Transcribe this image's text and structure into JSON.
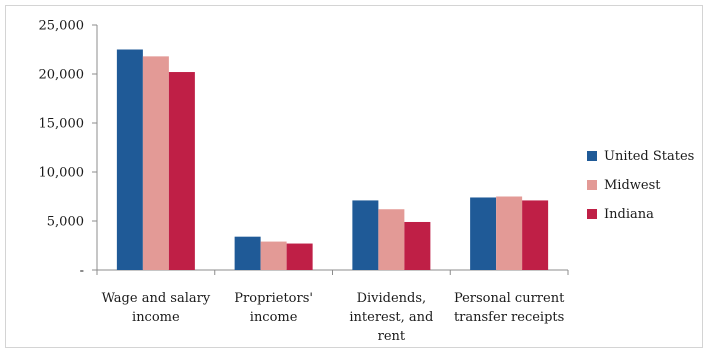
{
  "chart_data": {
    "type": "bar",
    "categories": [
      [
        "Wage and salary",
        "income"
      ],
      [
        "Proprietors'",
        "income"
      ],
      [
        "Dividends,",
        "interest, and",
        "rent"
      ],
      [
        "Personal current",
        "transfer receipts"
      ]
    ],
    "series": [
      {
        "name": "United States",
        "color": "#1f5a97",
        "values": [
          22500,
          3400,
          7100,
          7400
        ]
      },
      {
        "name": "Midwest",
        "color": "#e39a96",
        "values": [
          21800,
          2900,
          6200,
          7500
        ]
      },
      {
        "name": "Indiana",
        "color": "#bf1f46",
        "values": [
          20200,
          2700,
          4900,
          7100
        ]
      }
    ],
    "yticks": [
      "-",
      "5,000",
      "10,000",
      "15,000",
      "20,000",
      "25,000"
    ],
    "ytick_values": [
      0,
      5000,
      10000,
      15000,
      20000,
      25000
    ],
    "ylim": [
      0,
      25000
    ],
    "grid": false,
    "legend_position": "right"
  }
}
